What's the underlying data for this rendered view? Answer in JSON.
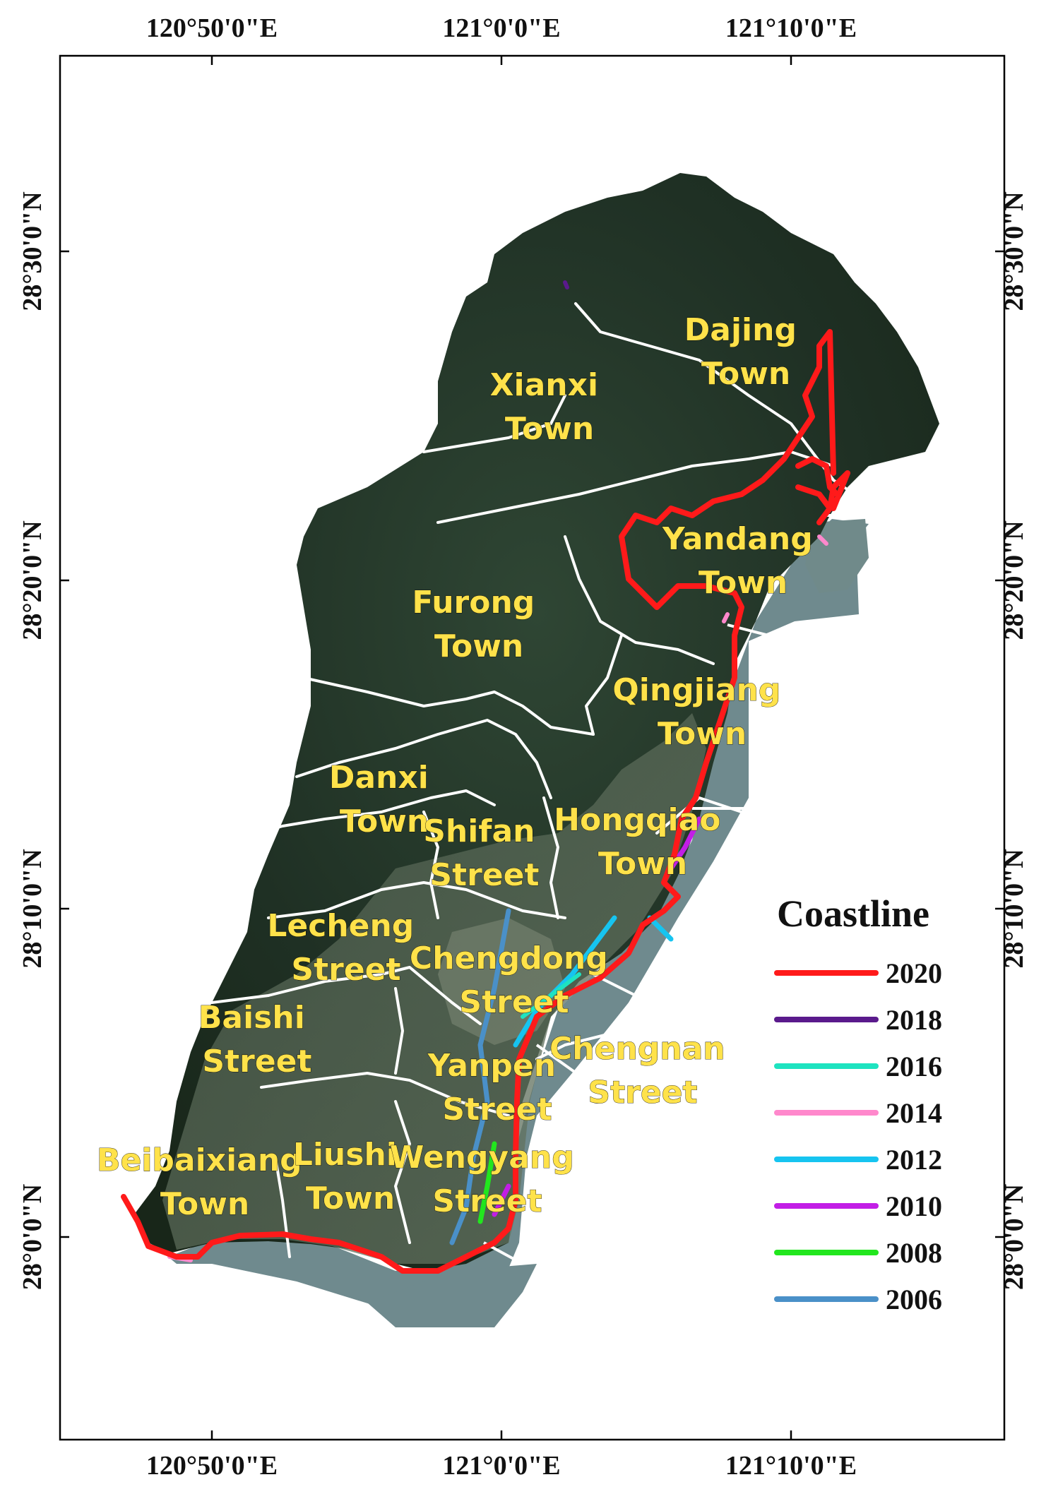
{
  "axes": {
    "lon_ticks": [
      "120°50'0\"E",
      "121°0'0\"E",
      "121°10'0\"E"
    ],
    "lat_ticks": [
      "28°30'0\"N",
      "28°20'0\"N",
      "28°10'0\"N",
      "28°0'0\"N"
    ]
  },
  "places": [
    {
      "id": "dajing",
      "line1": "Dajing",
      "line2": "Town"
    },
    {
      "id": "xianxi",
      "line1": "Xianxi",
      "line2": "Town"
    },
    {
      "id": "yandang",
      "line1": "Yandang",
      "line2": "Town"
    },
    {
      "id": "furong",
      "line1": "Furong",
      "line2": "Town"
    },
    {
      "id": "qingjiang",
      "line1": "Qingjiang",
      "line2": "Town"
    },
    {
      "id": "danxi",
      "line1": "Danxi",
      "line2": "Town"
    },
    {
      "id": "shifan",
      "line1": "Shifan",
      "line2": "Street"
    },
    {
      "id": "hongqiao",
      "line1": "Hongqiao",
      "line2": "Town"
    },
    {
      "id": "lecheng",
      "line1": "Lecheng",
      "line2": "Street"
    },
    {
      "id": "chengdong",
      "line1": "Chengdong",
      "line2": "Street"
    },
    {
      "id": "baishi",
      "line1": "Baishi",
      "line2": "Street"
    },
    {
      "id": "chengnan",
      "line1": "Chengnan",
      "line2": "Street"
    },
    {
      "id": "yanpen",
      "line1": "Yanpen",
      "line2": "Street"
    },
    {
      "id": "beibaixiang",
      "line1": "Beibaixiang",
      "line2": "Town"
    },
    {
      "id": "liushi",
      "line1": "Liushi",
      "line2": "Town"
    },
    {
      "id": "wengyang",
      "line1": "Wengyang",
      "line2": "Street"
    }
  ],
  "legend": {
    "title": "Coastline",
    "items": [
      {
        "year": "2020",
        "color": "#ff1a1a"
      },
      {
        "year": "2018",
        "color": "#5a1a8c"
      },
      {
        "year": "2016",
        "color": "#1ee3c0"
      },
      {
        "year": "2014",
        "color": "#ff88cc"
      },
      {
        "year": "2012",
        "color": "#16c4f0"
      },
      {
        "year": "2010",
        "color": "#c21ee6"
      },
      {
        "year": "2008",
        "color": "#22e61e"
      },
      {
        "year": "2006",
        "color": "#4a90c8"
      }
    ]
  },
  "colors": {
    "land": "#23342a",
    "sea": "#6f8a8e",
    "boundary": "#ffffff",
    "label": "#ffe24a"
  }
}
